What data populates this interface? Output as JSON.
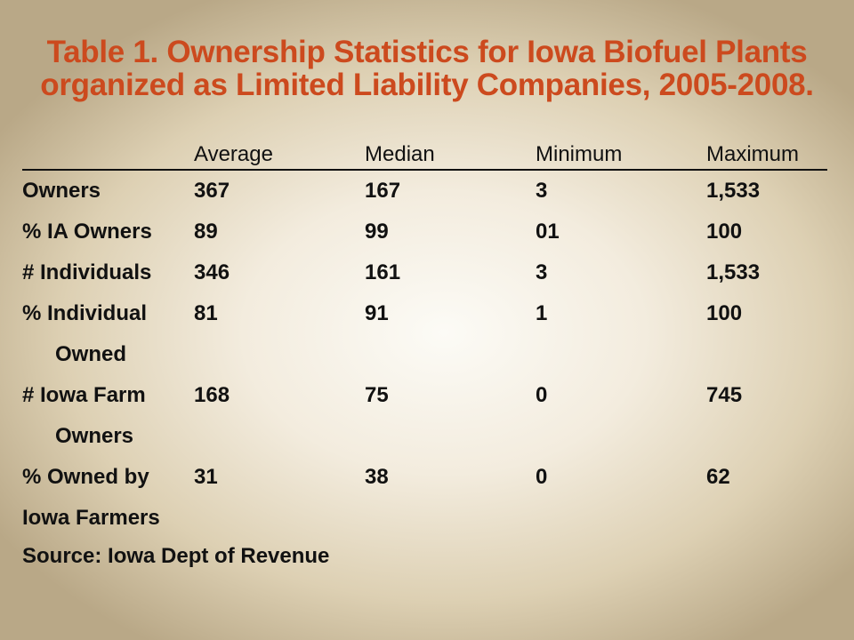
{
  "title": {
    "line1": "Table 1. Ownership Statistics for Iowa Biofuel Plants",
    "line2": "organized as Limited Liability Companies, 2005-2008."
  },
  "table": {
    "headers": [
      "",
      "Average",
      "Median",
      "Minimum",
      "Maximum"
    ],
    "rows": [
      {
        "label": "Owners",
        "label_cont": "",
        "values": [
          "367",
          "167",
          "3",
          "1,533"
        ]
      },
      {
        "label": "% IA Owners",
        "label_cont": "",
        "values": [
          "89",
          "99",
          "01",
          "100"
        ]
      },
      {
        "label": "# Individuals",
        "label_cont": "",
        "values": [
          "346",
          "161",
          "3",
          "1,533"
        ]
      },
      {
        "label": "% Individual",
        "label_cont": "Owned",
        "values": [
          "81",
          "91",
          "1",
          "100"
        ]
      },
      {
        "label": "# Iowa Farm",
        "label_cont": "Owners",
        "values": [
          "168",
          "75",
          "0",
          "745"
        ]
      },
      {
        "label": "% Owned by",
        "label_cont": "Iowa Farmers",
        "values": [
          "31",
          "38",
          "0",
          "62"
        ]
      }
    ]
  },
  "source": "Source: Iowa Dept of Revenue",
  "colors": {
    "title": "#cc4a1e",
    "text": "#111111"
  }
}
